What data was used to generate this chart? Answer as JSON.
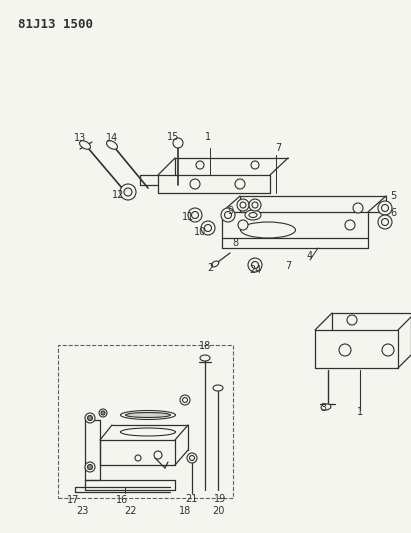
{
  "title": "81J13 1500",
  "bg_color": "#f5f5f0",
  "line_color": "#303030",
  "title_fontsize": 9,
  "label_fontsize": 7,
  "fig_width": 4.11,
  "fig_height": 5.33,
  "dpi": 100
}
